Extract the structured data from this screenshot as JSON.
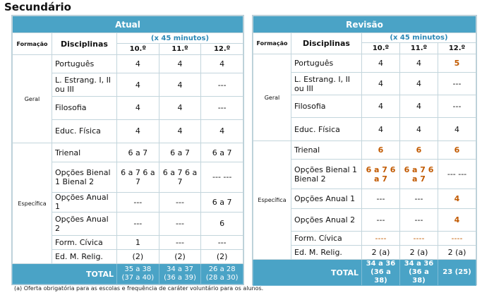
{
  "page": {
    "title": "Secundário",
    "footnote": "(a) Oferta obrigatória para as escolas e frequência de caráter voluntário para os alunos."
  },
  "headers": {
    "formacao": "Formação",
    "disciplinas": "Disciplinas",
    "minutos": "(x 45 minutos)",
    "years": [
      "10.º",
      "11.º",
      "12.º"
    ],
    "total": "TOTAL"
  },
  "groups": {
    "geral": "Geral",
    "especifica": "Específica"
  },
  "disciplines": {
    "portugues": "Português",
    "lestrang": "L. Estrang. I, II ou III",
    "filosofia": "Filosofia",
    "educ": "Educ. Física",
    "trienal": "Trienal",
    "opcoes_bienal": "Opções Bienal 1 Bienal 2",
    "opcoes_anual1": "Opções Anual 1",
    "opcoes_anual2": "Opções Anual 2",
    "formcivica": "Form. Cívica",
    "edmrelig": "Ed. M. Relig."
  },
  "atual": {
    "title": "Atual",
    "portugues": [
      "4",
      "4",
      "4"
    ],
    "lestrang": [
      "4",
      "4",
      "---"
    ],
    "filosofia": [
      "4",
      "4",
      "---"
    ],
    "educ": [
      "4",
      "4",
      "4"
    ],
    "trienal": [
      "6 a 7",
      "6 a 7",
      "6 a 7"
    ],
    "bienal": [
      "6 a 7 6 a 7",
      "6 a 7 6 a 7",
      "--- ---"
    ],
    "anual1": [
      "---",
      "---",
      "6 a 7"
    ],
    "anual2": [
      "---",
      "---",
      "6"
    ],
    "formcivica": [
      "1",
      "---",
      "---"
    ],
    "edmrelig": [
      "(2)",
      "(2)",
      "(2)"
    ],
    "total": [
      "35 a 38 (37 a 40)",
      "34 a 37 (36 a 39)",
      "26 a 28 (28 a 30)"
    ]
  },
  "revisao": {
    "title": "Revisão",
    "portugues": [
      "4",
      "4",
      "5"
    ],
    "lestrang": [
      "4",
      "4",
      "---"
    ],
    "filosofia": [
      "4",
      "4",
      "---"
    ],
    "educ": [
      "4",
      "4",
      "4"
    ],
    "trienal": [
      "6",
      "6",
      "6"
    ],
    "bienal": [
      "6 a 7 6 a 7",
      "6 a 7 6 a 7",
      "--- ---"
    ],
    "anual1": [
      "---",
      "---",
      "4"
    ],
    "anual2": [
      "---",
      "---",
      "4"
    ],
    "formcivica": [
      "----",
      "----",
      "----"
    ],
    "edmrelig": [
      "2 (a)",
      "2 (a)",
      "2 (a)"
    ],
    "total": [
      "34 a 36 (36 a 38)",
      "34 a 36 (36 a 38)",
      "23 (25)"
    ]
  }
}
